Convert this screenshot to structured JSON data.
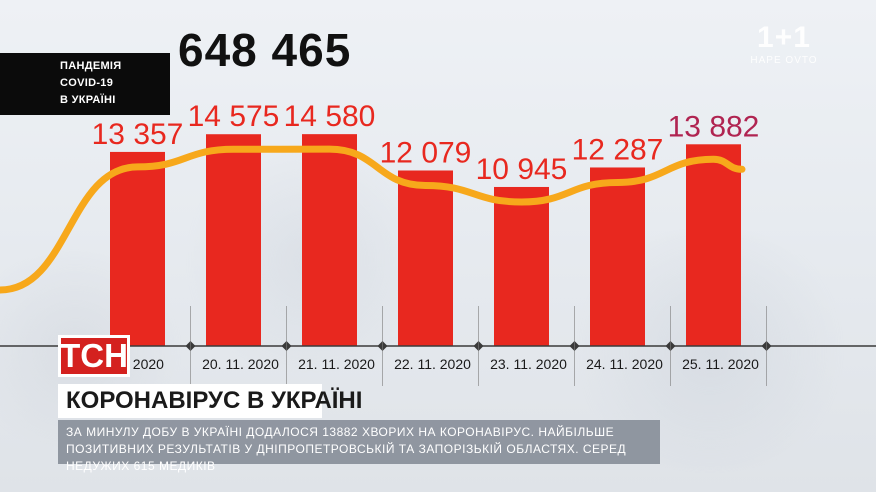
{
  "header": {
    "line1": "ПАНДЕМІЯ",
    "line2": "COVID-19",
    "line3": "В УКРАЇНІ"
  },
  "total": "648 465",
  "logo": {
    "big": "1+1",
    "small": "HAPE OVTO"
  },
  "tsn_logo": "ТСН",
  "title": "КОРОНАВІРУС В УКРАЇНІ",
  "description": "ЗА МИНУЛУ ДОБУ В УКРАЇНІ ДОДАЛОСЯ 13882 ХВОРИХ НА КОРОНАВІРУС. НАЙБІЛЬШЕ ПОЗИТИВНИХ РЕЗУЛЬТАТІВ У ДНІПРОПЕТРОВСЬКІЙ ТА ЗАПОРІЗЬКІЙ ОБЛАСТЯХ. СЕРЕД НЕДУЖИХ 615 МЕДИКІВ",
  "colors": {
    "bar": "#e8281f",
    "label": "#e8281f",
    "last_label": "#b02451",
    "trend_line": "#f7a81b"
  },
  "chart_data": {
    "type": "bar",
    "categories": [
      "19. 11. 2020",
      "20. 11. 2020",
      "21. 11. 2020",
      "22. 11. 2020",
      "23. 11. 2020",
      "24. 11. 2020",
      "25. 11. 2020"
    ],
    "date_labels": [
      ". 2020",
      "20. 11. 2020",
      "21. 11. 2020",
      "22. 11. 2020",
      "23. 11. 2020",
      "24. 11. 2020",
      "25. 11. 2020"
    ],
    "values": [
      13357,
      14575,
      14580,
      12079,
      10945,
      12287,
      13882
    ],
    "value_labels": [
      "13 357",
      "14 575",
      "14 580",
      "12 079",
      "10 945",
      "12 287",
      "13 882"
    ],
    "trend": true,
    "title": "",
    "xlabel": "",
    "ylabel": "",
    "ylim": [
      0,
      16000
    ],
    "grid": false
  }
}
